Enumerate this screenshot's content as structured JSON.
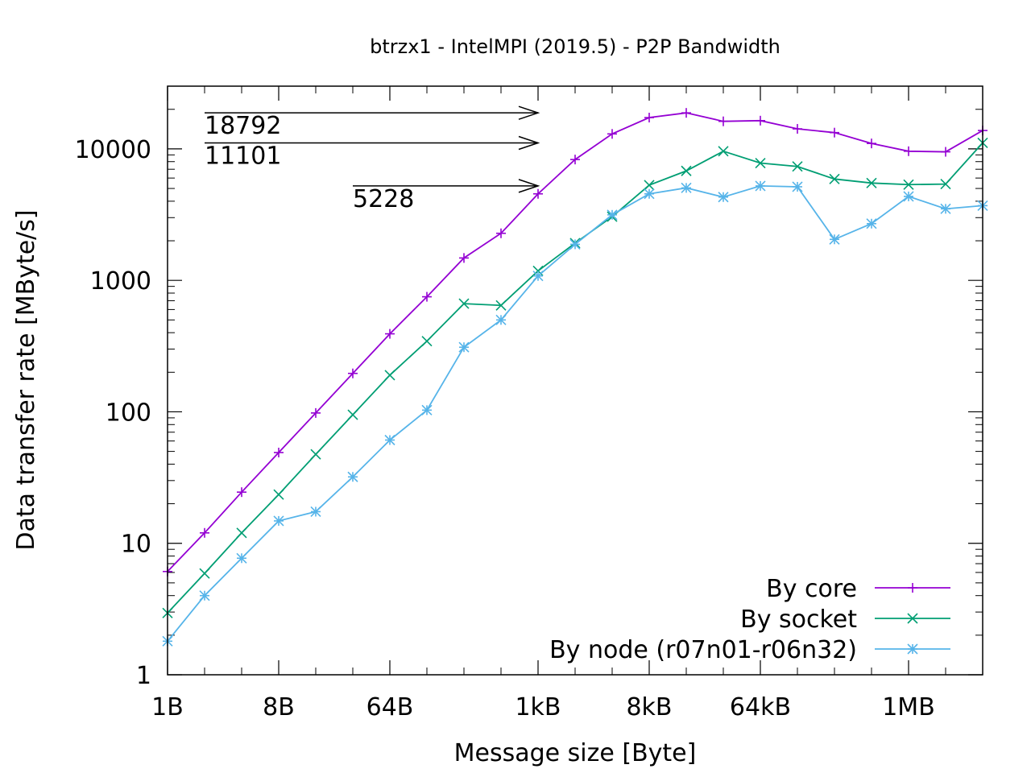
{
  "chart_data": {
    "type": "line",
    "title": "btrzx1 - IntelMPI (2019.5) - P2P Bandwidth",
    "xlabel": "Message size [Byte]",
    "ylabel": "Data transfer rate [MByte/s]",
    "x_scale": "log2",
    "y_scale": "log10",
    "xlim": [
      1,
      4194304
    ],
    "ylim": [
      1,
      30000
    ],
    "grid": false,
    "legend_position": "bottom-right",
    "x_ticks": [
      {
        "value": 1,
        "label": "1B"
      },
      {
        "value": 8,
        "label": "8B"
      },
      {
        "value": 64,
        "label": "64B"
      },
      {
        "value": 1024,
        "label": "1kB"
      },
      {
        "value": 8192,
        "label": "8kB"
      },
      {
        "value": 65536,
        "label": "64kB"
      },
      {
        "value": 1048576,
        "label": "1MB"
      }
    ],
    "y_ticks": [
      {
        "value": 1,
        "label": "1"
      },
      {
        "value": 10,
        "label": "10"
      },
      {
        "value": 100,
        "label": "100"
      },
      {
        "value": 1000,
        "label": "1000"
      },
      {
        "value": 10000,
        "label": "10000"
      }
    ],
    "x": [
      1,
      2,
      4,
      8,
      16,
      32,
      64,
      128,
      256,
      512,
      1024,
      2048,
      4096,
      8192,
      16384,
      32768,
      65536,
      131072,
      262144,
      524288,
      1048576,
      2097152,
      4194304
    ],
    "series": [
      {
        "name": "By core",
        "color": "#9400d3",
        "marker": "plus",
        "values": [
          6.1,
          12,
          24.5,
          49,
          98,
          196,
          392,
          750,
          1480,
          2280,
          4550,
          8300,
          13000,
          17300,
          18792,
          16200,
          16400,
          14200,
          13300,
          11000,
          9600,
          9500,
          13800
        ]
      },
      {
        "name": "By socket",
        "color": "#009e73",
        "marker": "cross",
        "values": [
          2.95,
          5.9,
          12,
          23.5,
          47.5,
          95,
          190,
          345,
          665,
          645,
          1180,
          1920,
          3050,
          5300,
          6800,
          9600,
          7800,
          7350,
          5900,
          5500,
          5350,
          5400,
          11101
        ]
      },
      {
        "name": "By node (r07n01-r06n32)",
        "color": "#56b4e9",
        "marker": "star",
        "values": [
          1.8,
          4,
          7.7,
          14.8,
          17.4,
          32,
          61,
          103,
          310,
          500,
          1080,
          1880,
          3150,
          4550,
          5050,
          4300,
          5228,
          5150,
          2050,
          2700,
          4350,
          3500,
          3700
        ]
      }
    ],
    "annotations": [
      {
        "label": "18792",
        "from_x": 2,
        "to_x": 1024,
        "y": 18792
      },
      {
        "label": "11101",
        "from_x": 2,
        "to_x": 1024,
        "y": 11101
      },
      {
        "label": "5228",
        "from_x": 32,
        "to_x": 1024,
        "y": 5228
      }
    ]
  }
}
